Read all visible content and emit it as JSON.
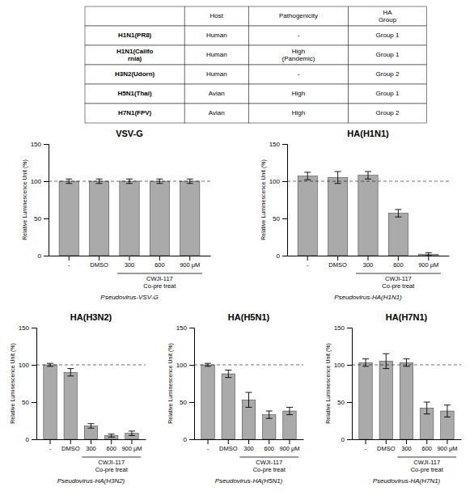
{
  "chart_data": [
    {
      "type": "table",
      "rows": [
        [
          null,
          "Host",
          "Pathogenicity",
          "HA\nGroup"
        ],
        [
          "H1N1(PR8)",
          "Human",
          "-",
          "Group 1"
        ],
        [
          "H1N1(Califo\nrnia)",
          "Human",
          "High\n(Pandemic)",
          "Group 1"
        ],
        [
          "H3N2(Udorn)",
          "Human",
          "-",
          "Group 2"
        ],
        [
          "H5N1(Thai)",
          "Avian",
          "High",
          "Group 1"
        ],
        [
          "H7N1(FPV)",
          "Avian",
          "High",
          "Group 2"
        ]
      ]
    },
    {
      "type": "bar",
      "title": "VSV-G",
      "xlabel": "Pseudovirus-VSV-G",
      "ylabel": "Relative Luminescence Unit (%)",
      "categories": [
        "-",
        "DMSO",
        "300",
        "600",
        "900 μM"
      ],
      "values": [
        100,
        100,
        100,
        100,
        100
      ],
      "errors": [
        3,
        3,
        3,
        3,
        3
      ],
      "color": "#aaaaaa",
      "hline": 100,
      "ylim": [
        0,
        150
      ],
      "yticks": [
        0,
        50,
        100,
        150
      ],
      "annotations": [
        {
          "text": "CWJI-117\nCo-pre treat",
          "span": [
            "300",
            "900 μM"
          ]
        }
      ]
    },
    {
      "type": "bar",
      "title": "HA(H1N1)",
      "xlabel": "Pseudovirus-HA(H1N1)",
      "ylabel": "Relative Luminescence Unit (%)",
      "categories": [
        "-",
        "DMSO",
        "300",
        "600",
        "900 μM"
      ],
      "values": [
        107,
        105,
        108,
        57,
        2
      ],
      "errors": [
        5,
        8,
        5,
        5,
        2
      ],
      "color": "#aaaaaa",
      "hline": 100,
      "ylim": [
        0,
        150
      ],
      "yticks": [
        0,
        50,
        100,
        150
      ],
      "annotations": [
        {
          "text": "CWJI-117\nCo-pre treat",
          "span": [
            "300",
            "900 μM"
          ]
        }
      ]
    },
    {
      "type": "bar",
      "title": "HA(H3N2)",
      "xlabel": "Pseudovirus-HA(H3N2)",
      "ylabel": "Relative Luminescence Unit (%)",
      "categories": [
        "-",
        "DMSO",
        "300",
        "600",
        "900 μM"
      ],
      "values": [
        100,
        90,
        18,
        5,
        8
      ],
      "errors": [
        2,
        5,
        3,
        2,
        3
      ],
      "color": "#aaaaaa",
      "hline": 100,
      "ylim": [
        0,
        150
      ],
      "yticks": [
        0,
        50,
        100,
        150
      ],
      "annotations": [
        {
          "text": "CWJI-117\nCo-pre treat",
          "span": [
            "300",
            "900 μM"
          ]
        }
      ]
    },
    {
      "type": "bar",
      "title": "HA(H5N1)",
      "xlabel": "Pseudovirus-HA(H5N1)",
      "ylabel": "Relative Luminescence Unit (%)",
      "categories": [
        "-",
        "DMSO",
        "300",
        "600",
        "900 μM"
      ],
      "values": [
        100,
        88,
        53,
        33,
        38
      ],
      "errors": [
        2,
        5,
        10,
        5,
        5
      ],
      "color": "#aaaaaa",
      "hline": 100,
      "ylim": [
        0,
        150
      ],
      "yticks": [
        0,
        50,
        100,
        150
      ],
      "annotations": [
        {
          "text": "CWJI-117\nCo-pre treat",
          "span": [
            "300",
            "900 μM"
          ]
        }
      ]
    },
    {
      "type": "bar",
      "title": "HA(H7N1)",
      "xlabel": "Pseudovirus-HA(H7N1)",
      "ylabel": "Relative Luminescence Unit (%)",
      "categories": [
        "-",
        "DMSO",
        "300",
        "600",
        "900 μM"
      ],
      "values": [
        103,
        105,
        103,
        42,
        38
      ],
      "errors": [
        5,
        10,
        5,
        8,
        8
      ],
      "color": "#aaaaaa",
      "hline": 100,
      "ylim": [
        0,
        150
      ],
      "yticks": [
        0,
        50,
        100,
        150
      ],
      "annotations": [
        {
          "text": "CWJI-117\nCo-pre treat",
          "span": [
            "300",
            "900 μM"
          ]
        }
      ]
    }
  ]
}
